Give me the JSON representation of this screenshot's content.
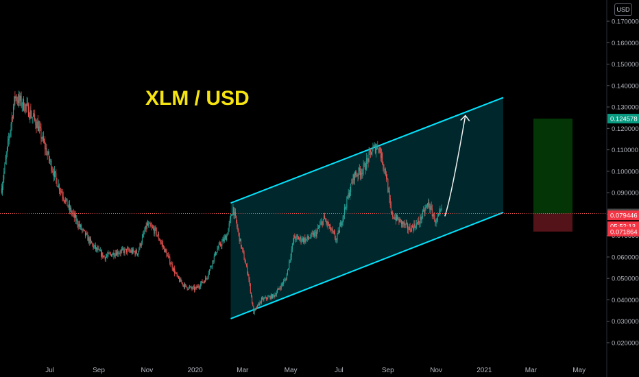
{
  "currency_button": "USD",
  "colors": {
    "up": "#26a69a",
    "down": "#ef5350",
    "channel": "#00e5ff",
    "title": "#f5e411"
  },
  "chart_data": {
    "type": "candlestick",
    "title": "XLM / USD",
    "x_axis_labels": [
      "Jul",
      "Sep",
      "Nov",
      "2020",
      "Mar",
      "May",
      "Jul",
      "Sep",
      "Nov",
      "2021",
      "Mar",
      "May"
    ],
    "y_axis_labels": [
      "0.170000",
      "0.160000",
      "0.150000",
      "0.140000",
      "0.130000",
      "0.120000",
      "0.110000",
      "0.100000",
      "0.090000",
      "0.080000",
      "0.070000",
      "0.060000",
      "0.050000",
      "0.040000",
      "0.030000",
      "0.020000"
    ],
    "ylim": [
      0.015,
      0.175
    ],
    "price_badges": [
      {
        "label": "0.124578",
        "color": "#089981"
      },
      {
        "label": "0.080288",
        "color": "#4a4a4a"
      },
      {
        "label": "0.079446",
        "color": "#f23645"
      },
      {
        "label": "05:52:13",
        "color": "#f23645"
      },
      {
        "label": "0.071864",
        "color": "#f23645"
      }
    ],
    "current_price": 0.080288,
    "channel": {
      "upper": [
        {
          "date": "2020-02-15",
          "price": 0.0852
        },
        {
          "date": "2021-01-25",
          "price": 0.1344
        }
      ],
      "lower": [
        {
          "date": "2020-02-15",
          "price": 0.0312
        },
        {
          "date": "2021-01-25",
          "price": 0.0808
        }
      ]
    },
    "position": {
      "entry": 0.080288,
      "target": 0.124578,
      "stop": 0.071864
    },
    "price_path": [
      {
        "date": "2019-05-01",
        "price": 0.092
      },
      {
        "date": "2019-05-18",
        "price": 0.135
      },
      {
        "date": "2019-06-01",
        "price": 0.13
      },
      {
        "date": "2019-06-15",
        "price": 0.122
      },
      {
        "date": "2019-06-28",
        "price": 0.108
      },
      {
        "date": "2019-07-10",
        "price": 0.095
      },
      {
        "date": "2019-07-25",
        "price": 0.083
      },
      {
        "date": "2019-08-10",
        "price": 0.073
      },
      {
        "date": "2019-08-25",
        "price": 0.065
      },
      {
        "date": "2019-09-08",
        "price": 0.06
      },
      {
        "date": "2019-09-22",
        "price": 0.062
      },
      {
        "date": "2019-10-06",
        "price": 0.063
      },
      {
        "date": "2019-10-20",
        "price": 0.062
      },
      {
        "date": "2019-11-01",
        "price": 0.075
      },
      {
        "date": "2019-11-12",
        "price": 0.072
      },
      {
        "date": "2019-11-25",
        "price": 0.062
      },
      {
        "date": "2019-12-10",
        "price": 0.05
      },
      {
        "date": "2019-12-20",
        "price": 0.046
      },
      {
        "date": "2020-01-01",
        "price": 0.045
      },
      {
        "date": "2020-01-15",
        "price": 0.05
      },
      {
        "date": "2020-01-28",
        "price": 0.063
      },
      {
        "date": "2020-02-10",
        "price": 0.07
      },
      {
        "date": "2020-02-18",
        "price": 0.083
      },
      {
        "date": "2020-02-27",
        "price": 0.067
      },
      {
        "date": "2020-03-08",
        "price": 0.052
      },
      {
        "date": "2020-03-15",
        "price": 0.034
      },
      {
        "date": "2020-03-25",
        "price": 0.04
      },
      {
        "date": "2020-04-10",
        "price": 0.042
      },
      {
        "date": "2020-04-25",
        "price": 0.05
      },
      {
        "date": "2020-05-05",
        "price": 0.069
      },
      {
        "date": "2020-05-20",
        "price": 0.068
      },
      {
        "date": "2020-06-02",
        "price": 0.071
      },
      {
        "date": "2020-06-12",
        "price": 0.078
      },
      {
        "date": "2020-06-28",
        "price": 0.068
      },
      {
        "date": "2020-07-08",
        "price": 0.082
      },
      {
        "date": "2020-07-20",
        "price": 0.098
      },
      {
        "date": "2020-08-01",
        "price": 0.101
      },
      {
        "date": "2020-08-12",
        "price": 0.11
      },
      {
        "date": "2020-08-20",
        "price": 0.112
      },
      {
        "date": "2020-08-30",
        "price": 0.098
      },
      {
        "date": "2020-09-05",
        "price": 0.08
      },
      {
        "date": "2020-09-15",
        "price": 0.077
      },
      {
        "date": "2020-09-28",
        "price": 0.073
      },
      {
        "date": "2020-10-10",
        "price": 0.076
      },
      {
        "date": "2020-10-22",
        "price": 0.085
      },
      {
        "date": "2020-11-01",
        "price": 0.076
      },
      {
        "date": "2020-11-08",
        "price": 0.082
      }
    ],
    "projection": [
      {
        "date": "2020-11-12",
        "price": 0.079
      },
      {
        "date": "2020-11-25",
        "price": 0.1
      },
      {
        "date": "2020-12-08",
        "price": 0.126
      }
    ]
  }
}
